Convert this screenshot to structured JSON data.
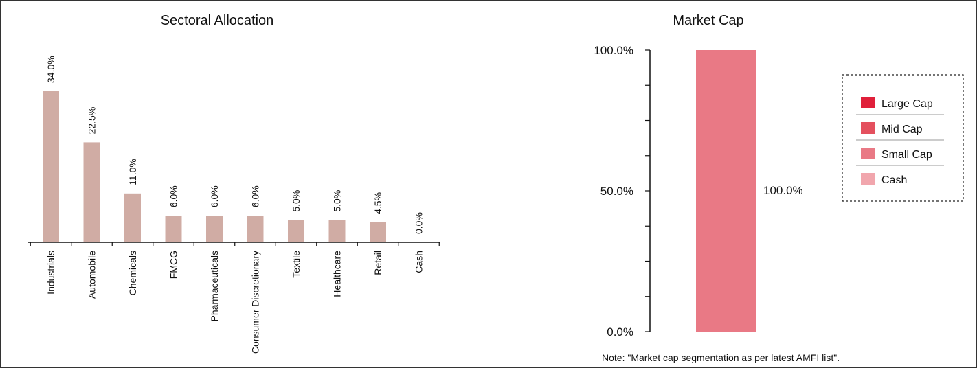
{
  "chart_data": [
    {
      "type": "bar",
      "title": "Sectoral Allocation",
      "categories": [
        "Industrials",
        "Automobile",
        "Chemicals",
        "FMCG",
        "Pharmaceuticals",
        "Consumer Discretionary",
        "Textile",
        "Healthcare",
        "Retail",
        "Cash"
      ],
      "values": [
        34.0,
        22.5,
        11.0,
        6.0,
        6.0,
        6.0,
        5.0,
        5.0,
        4.5,
        0.0
      ],
      "value_labels": [
        "34.0%",
        "22.5%",
        "11.0%",
        "6.0%",
        "6.0%",
        "6.0%",
        "5.0%",
        "5.0%",
        "4.5%",
        "0.0%"
      ],
      "color": "#d0aca4",
      "grid": false
    },
    {
      "type": "bar",
      "title": "Market Cap",
      "stacked": true,
      "categories": [
        ""
      ],
      "series": [
        {
          "name": "Large Cap",
          "values": [
            0.0
          ],
          "color": "#e0203a"
        },
        {
          "name": "Mid Cap",
          "values": [
            0.0
          ],
          "color": "#e4505e"
        },
        {
          "name": "Small Cap",
          "values": [
            100.0
          ],
          "color": "#e97985"
        },
        {
          "name": "Cash",
          "values": [
            0.0
          ],
          "color": "#f1a6ad"
        }
      ],
      "ylim": [
        0,
        100
      ],
      "yticks": [
        "0.0%",
        "50.0%",
        "100.0%"
      ],
      "value_label": "100.0%",
      "legend_position": "right",
      "note": "Note: \"Market cap segmentation as per latest AMFI list\"."
    }
  ]
}
